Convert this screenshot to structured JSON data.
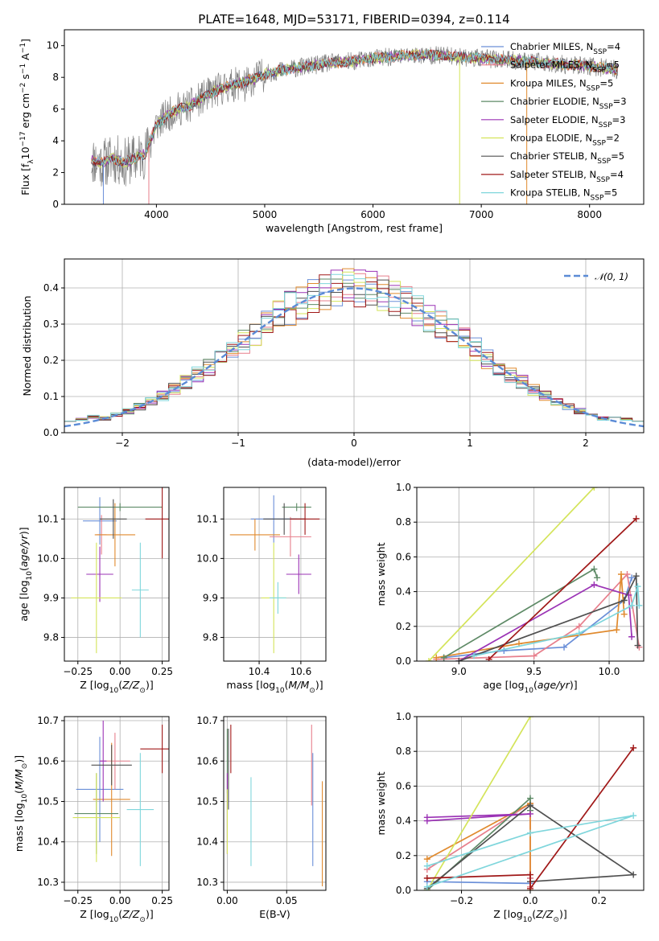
{
  "title": "PLATE=1648, MJD=53171, FIBERID=0394, z=0.114",
  "models": [
    {
      "label": "Chabrier MILES, N_SSP=4",
      "name": "Chabrier MILES, N",
      "sub": "SSP",
      "eq": "=4",
      "color": "#6a8fd8"
    },
    {
      "label": "Salpeter MILES, N_SSP=5",
      "name": "Salpeter MILES, N",
      "sub": "SSP",
      "eq": "=5",
      "color": "#e77f8c"
    },
    {
      "label": "Kroupa MILES, N_SSP=5",
      "name": "Kroupa MILES, N",
      "sub": "SSP",
      "eq": "=5",
      "color": "#e08a2e"
    },
    {
      "label": "Chabrier ELODIE, N_SSP=3",
      "name": "Chabrier ELODIE, N",
      "sub": "SSP",
      "eq": "=3",
      "color": "#5e8a66"
    },
    {
      "label": "Salpeter ELODIE, N_SSP=3",
      "name": "Salpeter ELODIE, N",
      "sub": "SSP",
      "eq": "=3",
      "color": "#9b33b5"
    },
    {
      "label": "Kroupa ELODIE, N_SSP=2",
      "name": "Kroupa ELODIE, N",
      "sub": "SSP",
      "eq": "=2",
      "color": "#d4e45a"
    },
    {
      "label": "Chabrier STELIB, N_SSP=5",
      "name": "Chabrier STELIB, N",
      "sub": "SSP",
      "eq": "=5",
      "color": "#505050"
    },
    {
      "label": "Salpeter STELIB, N_SSP=4",
      "name": "Salpeter STELIB, N",
      "sub": "SSP",
      "eq": "=4",
      "color": "#a01818"
    },
    {
      "label": "Kroupa STELIB, N_SSP=5",
      "name": "Kroupa STELIB, N",
      "sub": "SSP",
      "eq": "=5",
      "color": "#7fd6dc"
    }
  ],
  "chart_data": [
    {
      "id": "spectrum",
      "type": "line",
      "xlabel": "wavelength [Angstrom, rest frame]",
      "ylabel": "Flux [f_λ 10^-17 erg cm^-2 s^-1 A^-1]",
      "ylabel_parts": {
        "pre": "Flux [f",
        "sub": "λ",
        "mid": "10",
        "sup1": "−17",
        "post1": " erg cm",
        "sup2": "−2",
        "post2": " s",
        "sup3": "−1",
        "post3": " A",
        "sup4": "−1",
        "end": "]"
      },
      "xlim": [
        3150,
        8500
      ],
      "ylim": [
        0,
        11
      ],
      "xticks": [
        4000,
        5000,
        6000,
        7000,
        8000
      ],
      "yticks": [
        0,
        2,
        4,
        6,
        8,
        10
      ],
      "data_color": "#7f7f7f",
      "continuum_x": [
        3400,
        3500,
        3600,
        3700,
        3800,
        3900,
        4000,
        4100,
        4200,
        4300,
        4400,
        4500,
        4600,
        4700,
        4800,
        4900,
        5000,
        5200,
        5400,
        5600,
        5800,
        6000,
        6200,
        6400,
        6600,
        6800,
        7000,
        7200,
        7400,
        7600,
        7800,
        8000,
        8250
      ],
      "continuum_y": [
        2.8,
        2.6,
        2.9,
        2.6,
        2.9,
        3.2,
        5.0,
        5.6,
        6.0,
        6.2,
        6.6,
        7.0,
        7.3,
        7.5,
        7.7,
        7.9,
        8.2,
        8.5,
        8.7,
        8.9,
        9.0,
        9.2,
        9.3,
        9.4,
        9.4,
        9.3,
        9.2,
        9.1,
        9.0,
        8.9,
        8.8,
        8.7,
        8.5
      ]
    },
    {
      "id": "residuals",
      "type": "step",
      "xlabel": "(data-model)/error",
      "ylabel": "Normed distribution",
      "xlim": [
        -2.5,
        2.5
      ],
      "ylim": [
        0,
        0.48
      ],
      "xticks": [
        -2,
        -1,
        0,
        1,
        2
      ],
      "yticks": [
        0.0,
        0.1,
        0.2,
        0.3,
        0.4
      ],
      "legend": "𝒩(0, 1)",
      "legend_position": "top-right",
      "normal_color": "#5b8bd6"
    },
    {
      "id": "age_vs_Z",
      "type": "errorbar",
      "xlabel": "Z [log10(Z/Z_sun)]",
      "ylabel": "age  [log10(age/yr)]",
      "xlim": [
        -0.33,
        0.29
      ],
      "ylim": [
        9.74,
        10.18
      ],
      "xticks": [
        -0.25,
        0.0,
        0.25
      ],
      "yticks": [
        9.8,
        9.9,
        10.0,
        10.1
      ],
      "points": [
        {
          "x": -0.12,
          "y": 10.095,
          "xerr": 0.1,
          "yerr": 0.06
        },
        {
          "x": -0.11,
          "y": 10.06,
          "xerr": 0.03,
          "yerr": 0.05
        },
        {
          "x": -0.03,
          "y": 10.06,
          "xerr": 0.12,
          "yerr": 0.08
        },
        {
          "x": 0.0,
          "y": 10.13,
          "xerr": 0.25,
          "yerr": 0.01
        },
        {
          "x": -0.12,
          "y": 9.96,
          "xerr": 0.08,
          "yerr": 0.07
        },
        {
          "x": -0.14,
          "y": 9.9,
          "xerr": 0.15,
          "yerr": 0.14
        },
        {
          "x": -0.04,
          "y": 10.1,
          "xerr": 0.08,
          "yerr": 0.05
        },
        {
          "x": 0.25,
          "y": 10.1,
          "xerr": 0.1,
          "yerr": 0.1
        },
        {
          "x": 0.12,
          "y": 9.92,
          "xerr": 0.05,
          "yerr": 0.12
        }
      ]
    },
    {
      "id": "age_vs_mass",
      "type": "errorbar",
      "xlabel": "mass [log10(M/M_sun)]",
      "ylabel": "",
      "xlim": [
        10.23,
        10.72
      ],
      "ylim": [
        9.74,
        10.18
      ],
      "xticks": [
        10.4,
        10.6
      ],
      "yticks": [
        9.8,
        9.9,
        10.0,
        10.1
      ],
      "points": [
        {
          "x": 10.47,
          "y": 10.1,
          "xerr": 0.11,
          "yerr": 0.06
        },
        {
          "x": 10.55,
          "y": 10.055,
          "xerr": 0.1,
          "yerr": 0.05
        },
        {
          "x": 10.38,
          "y": 10.06,
          "xerr": 0.12,
          "yerr": 0.04
        },
        {
          "x": 10.58,
          "y": 10.13,
          "xerr": 0.07,
          "yerr": 0.01
        },
        {
          "x": 10.59,
          "y": 9.96,
          "xerr": 0.06,
          "yerr": 0.05
        },
        {
          "x": 10.47,
          "y": 9.9,
          "xerr": 0.06,
          "yerr": 0.14
        },
        {
          "x": 10.52,
          "y": 10.1,
          "xerr": 0.1,
          "yerr": 0.04
        },
        {
          "x": 10.62,
          "y": 10.1,
          "xerr": 0.07,
          "yerr": 0.04
        },
        {
          "x": 10.49,
          "y": 9.9,
          "xerr": 0.04,
          "yerr": 0.04
        }
      ]
    },
    {
      "id": "weights_vs_age",
      "type": "line",
      "xlabel": "age  [log10(age/yr)]",
      "ylabel": "mass weight",
      "xlim": [
        8.72,
        10.23
      ],
      "ylim": [
        0,
        1.0
      ],
      "xticks": [
        9.0,
        9.5,
        10.0
      ],
      "yticks": [
        0.0,
        0.2,
        0.4,
        0.6,
        0.8,
        1.0
      ],
      "series": [
        {
          "x": [
            8.9,
            9.3,
            9.7,
            10.1,
            10.15
          ],
          "y": [
            0.02,
            0.06,
            0.08,
            0.35,
            0.48
          ]
        },
        {
          "x": [
            8.85,
            9.5,
            9.8,
            10.12,
            10.2
          ],
          "y": [
            0.01,
            0.03,
            0.2,
            0.5,
            0.08
          ]
        },
        {
          "x": [
            8.85,
            9.4,
            10.05,
            10.08,
            10.1
          ],
          "y": [
            0.02,
            0.1,
            0.18,
            0.5,
            0.27
          ]
        },
        {
          "x": [
            8.9,
            9.9,
            9.92
          ],
          "y": [
            0.02,
            0.53,
            0.48
          ]
        },
        {
          "x": [
            9.0,
            9.9,
            10.13,
            10.15
          ],
          "y": [
            0.0,
            0.44,
            0.38,
            0.14
          ]
        },
        {
          "x": [
            8.8,
            9.9
          ],
          "y": [
            0.0,
            1.0
          ]
        },
        {
          "x": [
            9.0,
            10.1,
            10.18,
            10.19
          ],
          "y": [
            0.0,
            0.35,
            0.49,
            0.09
          ]
        },
        {
          "x": [
            9.2,
            10.18
          ],
          "y": [
            0.01,
            0.82
          ]
        },
        {
          "x": [
            9.1,
            9.8,
            10.15,
            10.19,
            10.2
          ],
          "y": [
            0.03,
            0.16,
            0.32,
            0.43,
            0.32
          ]
        }
      ]
    },
    {
      "id": "mass_vs_Z",
      "type": "errorbar",
      "xlabel": "Z [log10(Z/Z_sun)]",
      "ylabel": "mass [log10(M/M_sun)]",
      "xlim": [
        -0.33,
        0.29
      ],
      "ylim": [
        10.28,
        10.71
      ],
      "xticks": [
        -0.25,
        0.0,
        0.25
      ],
      "yticks": [
        10.3,
        10.4,
        10.5,
        10.6,
        10.7
      ],
      "points": [
        {
          "x": -0.12,
          "y": 10.53,
          "xerr": 0.14,
          "yerr": 0.13
        },
        {
          "x": -0.03,
          "y": 10.6,
          "xerr": 0.09,
          "yerr": 0.07
        },
        {
          "x": -0.05,
          "y": 10.505,
          "xerr": 0.11,
          "yerr": 0.14
        },
        {
          "x": -0.14,
          "y": 10.47,
          "xerr": 0.13,
          "yerr": 0.1
        },
        {
          "x": -0.1,
          "y": 10.6,
          "xerr": 0.02,
          "yerr": 0.1
        },
        {
          "x": -0.14,
          "y": 10.46,
          "xerr": 0.14,
          "yerr": 0.11
        },
        {
          "x": -0.05,
          "y": 10.59,
          "xerr": 0.12,
          "yerr": 0.05
        },
        {
          "x": 0.25,
          "y": 10.63,
          "xerr": 0.13,
          "yerr": 0.06
        },
        {
          "x": 0.12,
          "y": 10.48,
          "xerr": 0.08,
          "yerr": 0.14
        }
      ]
    },
    {
      "id": "mass_vs_EBV",
      "type": "errorbar",
      "xlabel": "E(B-V)",
      "ylabel": "",
      "xlim": [
        -0.003,
        0.083
      ],
      "ylim": [
        10.28,
        10.71
      ],
      "xticks": [
        0.0,
        0.05
      ],
      "yticks": [
        10.3,
        10.4,
        10.5,
        10.6,
        10.7
      ],
      "points": [
        {
          "x": 0.072,
          "y": 10.48,
          "xerr": 0,
          "yerr": 0.14
        },
        {
          "x": 0.071,
          "y": 10.59,
          "xerr": 0,
          "yerr": 0.1
        },
        {
          "x": 0.08,
          "y": 10.42,
          "xerr": 0,
          "yerr": 0.13
        },
        {
          "x": 0.0,
          "y": 10.6,
          "xerr": 0,
          "yerr": 0.08
        },
        {
          "x": 0.0,
          "y": 10.47,
          "xerr": 0,
          "yerr": 0.1
        },
        {
          "x": 0.0,
          "y": 10.45,
          "xerr": 0,
          "yerr": 0.08
        },
        {
          "x": 0.001,
          "y": 10.58,
          "xerr": 0,
          "yerr": 0.1
        },
        {
          "x": 0.003,
          "y": 10.63,
          "xerr": 0,
          "yerr": 0.06
        },
        {
          "x": 0.02,
          "y": 10.45,
          "xerr": 0,
          "yerr": 0.11
        }
      ]
    },
    {
      "id": "weights_vs_Z",
      "type": "line",
      "xlabel": "Z [log10(Z/Z_sun)]",
      "ylabel": "mass weight",
      "xlim": [
        -0.33,
        0.33
      ],
      "ylim": [
        0,
        1.0
      ],
      "xticks": [
        -0.2,
        0.0,
        0.2
      ],
      "yticks": [
        0.0,
        0.2,
        0.4,
        0.6,
        0.8,
        1.0
      ],
      "series": [
        {
          "x": [
            -0.3,
            0.0,
            0.0,
            0.0
          ],
          "y": [
            0.05,
            0.04,
            0.05,
            0.07
          ]
        },
        {
          "x": [
            -0.3,
            0.0,
            0.0,
            0.0
          ],
          "y": [
            0.12,
            0.5,
            0.02,
            0.07
          ]
        },
        {
          "x": [
            -0.3,
            0.0,
            0.0
          ],
          "y": [
            0.18,
            0.5,
            0.0
          ]
        },
        {
          "x": [
            -0.3,
            0.0,
            0.0
          ],
          "y": [
            0.0,
            0.53,
            0.46
          ]
        },
        {
          "x": [
            -0.3,
            0.0,
            -0.3
          ],
          "y": [
            0.42,
            0.44,
            0.4
          ]
        },
        {
          "x": [
            -0.3,
            0.0
          ],
          "y": [
            0.0,
            1.0
          ]
        },
        {
          "x": [
            -0.3,
            0.0,
            0.3,
            0.0
          ],
          "y": [
            0.01,
            0.49,
            0.09,
            0.05
          ]
        },
        {
          "x": [
            -0.3,
            0.0,
            0.0,
            0.3
          ],
          "y": [
            0.07,
            0.09,
            0.01,
            0.82
          ]
        },
        {
          "x": [
            -0.3,
            0.0,
            0.3,
            -0.3
          ],
          "y": [
            0.14,
            0.33,
            0.43,
            0.02
          ]
        }
      ]
    }
  ]
}
